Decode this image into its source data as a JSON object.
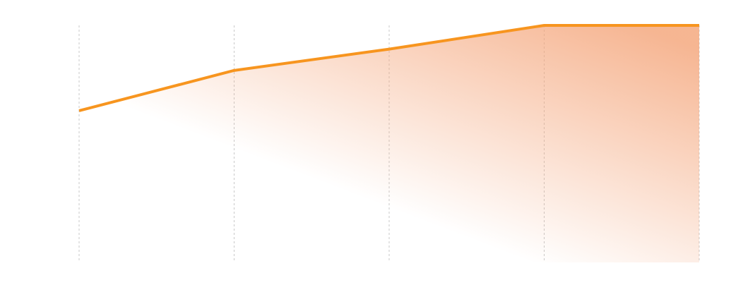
{
  "chart_data": {
    "type": "area",
    "categories": [
      null,
      null,
      null,
      null,
      null
    ],
    "series": [
      {
        "color": "#f7951f",
        "fill": "#f4a377",
        "values": [
          64,
          81,
          90,
          100,
          100
        ]
      }
    ],
    "ylim": [
      0,
      100
    ],
    "grid": true
  }
}
